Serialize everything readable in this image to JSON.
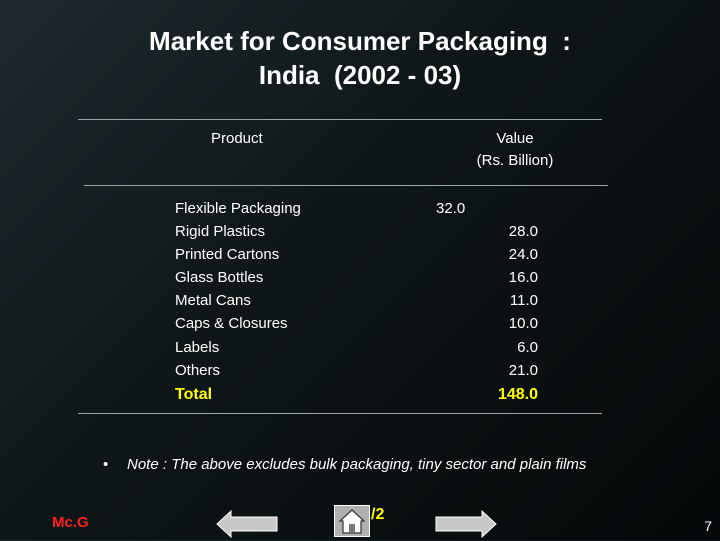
{
  "title": {
    "line1": "Market for Consumer Packaging  :",
    "line2": "India  (2002 - 03)"
  },
  "table": {
    "headers": {
      "product": "Product",
      "value_line1": "Value",
      "value_line2": "(Rs. Billion)"
    },
    "rows": [
      {
        "product": "Flexible Packaging",
        "value": "32.0"
      },
      {
        "product": "Rigid Plastics",
        "value": "28.0"
      },
      {
        "product": "Printed Cartons",
        "value": "24.0"
      },
      {
        "product": "Glass Bottles",
        "value": "16.0"
      },
      {
        "product": "Metal Cans",
        "value": "11.0"
      },
      {
        "product": "Caps & Closures",
        "value": "10.0"
      },
      {
        "product": "Labels",
        "value": "6.0"
      },
      {
        "product": "Others",
        "value": "21.0"
      }
    ],
    "total": {
      "label": "Total",
      "value": "148.0"
    }
  },
  "note": {
    "bullet": "•",
    "text": "Note : The above excludes bulk packaging, tiny sector and plain films"
  },
  "footer": {
    "logo": "Mc.G",
    "home_fragment": "/2",
    "page_number": "7"
  },
  "colors": {
    "total": "#ffff00",
    "logo": "#ff2020"
  },
  "icons": {
    "prev": "left-arrow-icon",
    "home": "home-icon",
    "next": "right-arrow-icon"
  }
}
